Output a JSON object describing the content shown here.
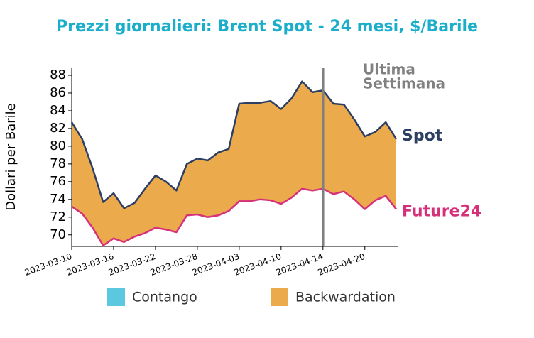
{
  "chart_data": {
    "type": "line",
    "title": "Prezzi giornalieri: Brent Spot - 24 mesi, $/Barile",
    "ylabel": "Dollari per Barile",
    "categories": [
      "2023-03-10",
      null,
      null,
      null,
      "2023-03-16",
      null,
      null,
      null,
      "2023-03-22",
      null,
      null,
      null,
      "2023-03-28",
      null,
      null,
      null,
      "2023-04-03",
      null,
      null,
      null,
      "2023-04-10",
      null,
      null,
      null,
      "2023-04-14",
      null,
      null,
      null,
      "2023-04-20",
      null,
      null,
      null
    ],
    "series": [
      {
        "name": "Spot",
        "color": "#2d3e63",
        "values": [
          82.7,
          80.8,
          77.5,
          73.7,
          74.7,
          73.0,
          73.6,
          75.2,
          76.7,
          76.0,
          75.0,
          78.0,
          78.6,
          78.4,
          79.3,
          79.7,
          84.8,
          84.9,
          84.9,
          85.1,
          84.2,
          85.4,
          87.3,
          86.1,
          86.3,
          84.8,
          84.7,
          83.0,
          81.1,
          81.6,
          82.7,
          80.8
        ]
      },
      {
        "name": "Future24",
        "color": "#d6307a",
        "values": [
          73.2,
          72.4,
          70.8,
          68.8,
          69.6,
          69.2,
          69.8,
          70.2,
          70.8,
          70.6,
          70.3,
          72.2,
          72.3,
          72.0,
          72.2,
          72.7,
          73.8,
          73.8,
          74.0,
          73.9,
          73.5,
          74.2,
          75.2,
          75.0,
          75.2,
          74.6,
          74.9,
          74.0,
          72.9,
          73.9,
          74.4,
          72.9
        ]
      }
    ],
    "fills": [
      {
        "name": "Contango",
        "color": "#5bc8e0"
      },
      {
        "name": "Backwardation",
        "color": "#ebab4d"
      }
    ],
    "annotation": {
      "lines": [
        "Ultima",
        "Settimana"
      ],
      "at": "2023-04-14",
      "color": "#808080"
    },
    "ylim": [
      68.7,
      88.8
    ],
    "yticks": [
      70,
      72,
      74,
      76,
      78,
      80,
      82,
      84,
      86,
      88
    ],
    "title_color": "#1aaecb"
  }
}
